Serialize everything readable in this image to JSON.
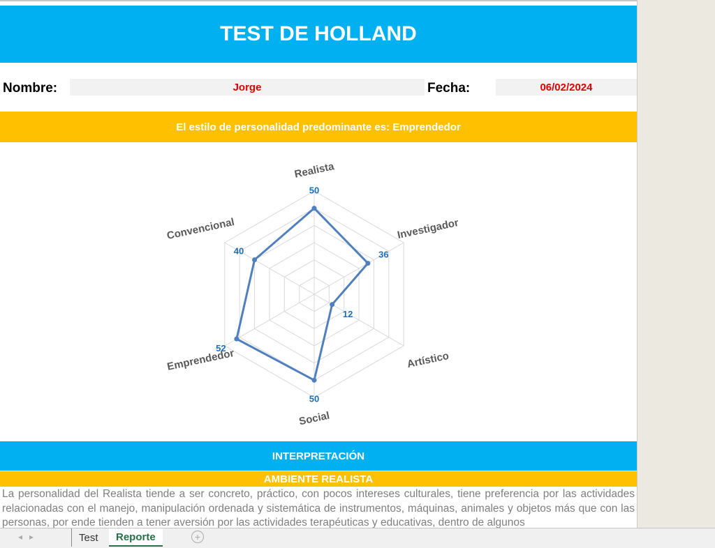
{
  "header": {
    "title": "TEST DE HOLLAND"
  },
  "fields": {
    "name_label": "Nombre:",
    "name": "Jorge",
    "date_label": "Fecha:",
    "date": "06/02/2024"
  },
  "result": "El estilo de personalidad predominante es: Emprendedor",
  "chart_data": {
    "type": "radar",
    "categories": [
      "Realista",
      "Investigador",
      "Artístico",
      "Social",
      "Emprendedor",
      "Convencional"
    ],
    "values": [
      50,
      36,
      12,
      50,
      52,
      40
    ],
    "color": "#4f7fbf",
    "ylim": [
      0,
      60
    ],
    "yticks": [
      10,
      20,
      30,
      40,
      50,
      60
    ],
    "grid": true
  },
  "interpretation": {
    "title": "INTERPRETACIÓN",
    "section": "AMBIENTE REALISTA",
    "text": "La personalidad del Realista tiende a ser concreto, práctico, con pocos intereses culturales, tiene preferencia por las actividades relacionadas con el manejo, manipulación ordenada y sistemática de instrumentos, máquinas, animales y objetos más que con las personas, por ende tienden a tener aversión por las actividades terapéuticas y educativas, dentro de algunos"
  },
  "tabs": [
    "Test",
    "Reporte"
  ]
}
